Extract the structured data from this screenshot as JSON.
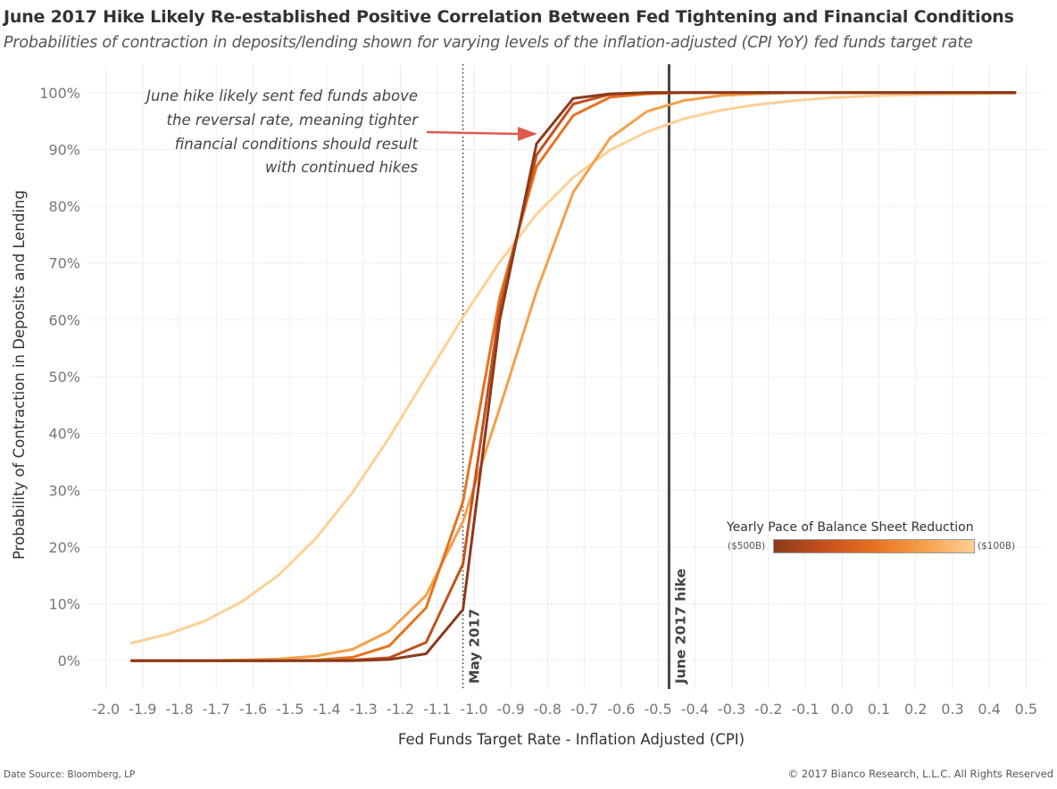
{
  "title": "June 2017 Hike Likely Re-established Positive Correlation Between Fed Tightening and Financial Conditions",
  "subtitle": "Probabilities of contraction in deposits/lending shown for varying levels of the inflation-adjusted (CPI YoY) fed funds target rate",
  "footer": {
    "source": "Date Source: Bloomberg, LP",
    "copyright": "© 2017 Bianco Research, L.L.C. All Rights Reserved"
  },
  "legend": {
    "title": "Yearly Pace of Balance Sheet Reduction",
    "min_label": "($500B)",
    "max_label": "($100B)",
    "colors": [
      "#8b3a1c",
      "#c4501d",
      "#e8721f",
      "#f5a04a",
      "#fdd095"
    ]
  },
  "annotation": {
    "lines": [
      "June hike likely sent fed funds above",
      "the reversal rate, meaning tighter",
      "financial conditions should result",
      "with continued hikes"
    ],
    "arrow_color": "#e05a4f"
  },
  "chart_data": {
    "type": "line",
    "xlabel": "Fed Funds Target Rate - Inflation Adjusted (CPI)",
    "ylabel": "Probability of Contraction in Deposits and Lending",
    "xlim": [
      -2.05,
      0.55
    ],
    "ylim": [
      -5,
      105
    ],
    "x_ticks": [
      -2.0,
      -1.9,
      -1.8,
      -1.7,
      -1.6,
      -1.5,
      -1.4,
      -1.3,
      -1.2,
      -1.1,
      -1.0,
      -0.9,
      -0.8,
      -0.7,
      -0.6,
      -0.5,
      -0.4,
      -0.3,
      -0.2,
      -0.1,
      0.0,
      0.1,
      0.2,
      0.3,
      0.4,
      0.5
    ],
    "y_ticks": [
      0,
      10,
      20,
      30,
      40,
      50,
      60,
      70,
      80,
      90,
      100
    ],
    "y_tick_suffix": "%",
    "grid": true,
    "reference_lines": [
      {
        "label": "May 2017",
        "x": -1.03,
        "style": "dotted",
        "color": "#333333"
      },
      {
        "label": "June 2017 hike",
        "x": -0.47,
        "style": "solid",
        "color": "#444444"
      }
    ],
    "x": [
      -1.93,
      -1.83,
      -1.73,
      -1.63,
      -1.53,
      -1.43,
      -1.33,
      -1.23,
      -1.13,
      -1.03,
      -0.93,
      -0.83,
      -0.73,
      -0.63,
      -0.53,
      -0.43,
      -0.33,
      -0.23,
      -0.13,
      -0.03,
      0.07,
      0.17,
      0.27,
      0.37,
      0.47
    ],
    "series": [
      {
        "color": "#8b3a1c",
        "values": [
          0,
          0,
          0,
          0,
          0,
          0,
          0,
          0.2,
          1.2,
          9,
          60,
          91,
          99,
          99.8,
          100,
          100,
          100,
          100,
          100,
          100,
          100,
          100,
          100,
          100,
          100
        ]
      },
      {
        "color": "#c4501d",
        "values": [
          0,
          0,
          0,
          0,
          0,
          0,
          0.1,
          0.5,
          3.2,
          17,
          62,
          89,
          98,
          99.7,
          100,
          100,
          100,
          100,
          100,
          100,
          100,
          100,
          100,
          100,
          100
        ]
      },
      {
        "color": "#e8721f",
        "values": [
          0,
          0,
          0,
          0,
          0,
          0.1,
          0.6,
          2.6,
          9.3,
          28,
          64,
          87,
          96,
          99.2,
          99.8,
          100,
          100,
          100,
          100,
          100,
          100,
          100,
          100,
          100,
          100
        ]
      },
      {
        "color": "#f5a04a",
        "values": [
          0,
          0,
          0,
          0.1,
          0.3,
          0.8,
          2.0,
          5.2,
          11.5,
          24.5,
          44.5,
          65,
          82.5,
          92,
          96.7,
          98.6,
          99.5,
          99.8,
          100,
          100,
          100,
          100,
          100,
          100,
          100
        ]
      },
      {
        "color": "#fdd095",
        "values": [
          3.1,
          4.7,
          7.0,
          10.4,
          15.1,
          21.5,
          29.6,
          39.3,
          49.9,
          60.5,
          70.2,
          78.6,
          85.1,
          89.9,
          93.1,
          95.4,
          96.9,
          97.9,
          98.6,
          99.1,
          99.4,
          99.6,
          99.7,
          99.8,
          99.9
        ]
      }
    ]
  }
}
